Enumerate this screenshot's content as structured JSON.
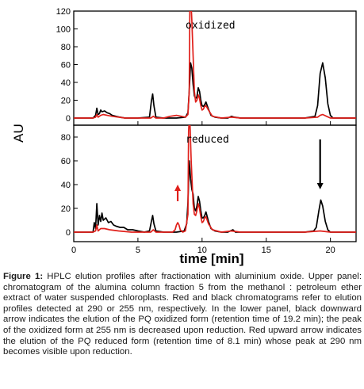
{
  "chart_data": [
    {
      "type": "line",
      "panel_label": "oxidized",
      "xlabel": "time [min]",
      "ylabel": "AU",
      "xlim": [
        0,
        22
      ],
      "ylim": [
        -8,
        120
      ],
      "x_ticks": [
        0,
        5,
        10,
        15,
        20
      ],
      "y_ticks": [
        0,
        20,
        40,
        60,
        80,
        100,
        120
      ],
      "x_tick_labels_shown": false,
      "grid": false,
      "legend": "none",
      "series": [
        {
          "color": "#000000",
          "x": [
            0,
            1.5,
            1.7,
            1.8,
            1.9,
            2.0,
            2.1,
            2.2,
            2.4,
            2.6,
            2.8,
            3.0,
            3.3,
            3.6,
            4.0,
            5.0,
            5.9,
            6.05,
            6.15,
            6.25,
            6.4,
            7.0,
            8.0,
            8.7,
            8.9,
            9.0,
            9.1,
            9.2,
            9.3,
            9.4,
            9.5,
            9.6,
            9.7,
            9.8,
            9.9,
            10.0,
            10.1,
            10.2,
            10.3,
            10.5,
            10.7,
            11.0,
            11.5,
            12.0,
            12.3,
            12.5,
            13.0,
            15.0,
            18.0,
            18.8,
            19.0,
            19.2,
            19.4,
            19.6,
            19.8,
            20.0,
            20.2,
            20.5,
            21.0,
            22.0
          ],
          "y": [
            0,
            0,
            3,
            11,
            4,
            5,
            9,
            7,
            8,
            6,
            5,
            3,
            2,
            1,
            0,
            0,
            1,
            19,
            27,
            14,
            1,
            0,
            0,
            1,
            6,
            30,
            62,
            56,
            38,
            25,
            22,
            24,
            34,
            30,
            20,
            14,
            13,
            15,
            18,
            10,
            3,
            1,
            0,
            0,
            2,
            1,
            0,
            0,
            0,
            2,
            14,
            50,
            62,
            45,
            16,
            3,
            0,
            0,
            0,
            0
          ]
        },
        {
          "color": "#e0201b",
          "x": [
            0,
            1.5,
            1.7,
            1.8,
            1.9,
            2.1,
            2.3,
            2.6,
            3.0,
            3.5,
            4.0,
            5.0,
            6.0,
            6.2,
            6.4,
            7.0,
            7.5,
            8.0,
            8.4,
            8.7,
            8.9,
            9.0,
            9.05,
            9.1,
            9.15,
            9.2,
            9.3,
            9.4,
            9.5,
            9.6,
            9.7,
            9.8,
            9.9,
            10.0,
            10.1,
            10.2,
            10.3,
            10.5,
            10.8,
            11.5,
            12.3,
            13.0,
            15.0,
            18.0,
            19.0,
            19.2,
            19.4,
            19.7,
            20.0,
            22.0
          ],
          "y": [
            0,
            0,
            1,
            4,
            1,
            3,
            4,
            3,
            2,
            1,
            0,
            0,
            0,
            2,
            0,
            0,
            2,
            3,
            2,
            1,
            4,
            30,
            125,
            125,
            125,
            110,
            70,
            30,
            18,
            20,
            26,
            22,
            14,
            9,
            10,
            13,
            14,
            9,
            2,
            0,
            1,
            0,
            0,
            0,
            1,
            3,
            4,
            2,
            0,
            0
          ]
        }
      ]
    },
    {
      "type": "line",
      "panel_label": "reduced",
      "xlabel": "time [min]",
      "ylabel": "AU",
      "xlim": [
        0,
        22
      ],
      "ylim": [
        -8,
        90
      ],
      "x_ticks": [
        0,
        5,
        10,
        15,
        20
      ],
      "y_ticks": [
        0,
        20,
        40,
        60,
        80
      ],
      "x_tick_labels": [
        "0",
        "5",
        "10",
        "15",
        "20"
      ],
      "grid": false,
      "legend": "none",
      "annotations": [
        {
          "kind": "arrow-up",
          "color": "#e0201b",
          "x": 8.1,
          "y_start": 26,
          "y_end": 40
        },
        {
          "kind": "arrow-down",
          "color": "#000000",
          "x": 19.2,
          "y_start": 78,
          "y_end": 36
        }
      ],
      "series": [
        {
          "color": "#000000",
          "x": [
            0,
            1.5,
            1.6,
            1.7,
            1.8,
            1.9,
            2.0,
            2.1,
            2.2,
            2.3,
            2.5,
            2.7,
            2.9,
            3.1,
            3.3,
            3.6,
            3.9,
            4.2,
            4.6,
            5.0,
            5.5,
            5.9,
            6.05,
            6.15,
            6.25,
            6.4,
            7.0,
            8.0,
            8.6,
            8.8,
            8.9,
            9.0,
            9.1,
            9.2,
            9.3,
            9.4,
            9.5,
            9.6,
            9.7,
            9.8,
            9.9,
            10.0,
            10.1,
            10.2,
            10.3,
            10.5,
            10.7,
            11.0,
            11.5,
            12.0,
            12.2,
            12.4,
            12.6,
            13.0,
            15.0,
            18.0,
            18.7,
            18.9,
            19.1,
            19.25,
            19.4,
            19.6,
            19.8,
            20.0,
            20.3,
            22.0
          ],
          "y": [
            0,
            0,
            8,
            3,
            24,
            6,
            14,
            9,
            16,
            10,
            12,
            8,
            9,
            6,
            5,
            4,
            4,
            2,
            2,
            1,
            0,
            1,
            9,
            14,
            7,
            1,
            0,
            0,
            1,
            7,
            25,
            60,
            45,
            36,
            32,
            20,
            18,
            22,
            30,
            26,
            18,
            12,
            12,
            14,
            17,
            9,
            3,
            1,
            0,
            0,
            1,
            2,
            0,
            0,
            0,
            0,
            1,
            4,
            18,
            27,
            22,
            9,
            2,
            0,
            0,
            0
          ]
        },
        {
          "color": "#e0201b",
          "x": [
            0,
            1.5,
            1.7,
            1.8,
            1.9,
            2.1,
            2.4,
            2.8,
            3.5,
            4.5,
            5.5,
            6.0,
            6.2,
            6.4,
            7.0,
            7.7,
            7.9,
            8.0,
            8.1,
            8.2,
            8.3,
            8.5,
            8.7,
            8.9,
            8.95,
            9.0,
            9.05,
            9.15,
            9.3,
            9.4,
            9.5,
            9.6,
            9.7,
            9.8,
            9.9,
            10.0,
            10.1,
            10.2,
            10.3,
            10.5,
            10.8,
            11.5,
            12.3,
            13.0,
            15.0,
            18.0,
            19.2,
            20.0,
            22.0
          ],
          "y": [
            0,
            0,
            1,
            6,
            1,
            3,
            3,
            2,
            1,
            0,
            0,
            0,
            2,
            0,
            0,
            0,
            2,
            6,
            8,
            6,
            2,
            0,
            1,
            15,
            85,
            95,
            95,
            60,
            24,
            15,
            14,
            18,
            24,
            20,
            13,
            8,
            9,
            12,
            13,
            7,
            2,
            0,
            1,
            0,
            0,
            0,
            1,
            0,
            0
          ]
        }
      ]
    }
  ],
  "caption": {
    "label": "Figure 1:",
    "text": " HPLC elution profiles after fractionation with aluminium oxide. Upper panel: chromatogram of the alumina column fraction 5 from the methanol : petroleum ether extract of water suspended chloroplasts. Red and black chromatograms refer to elution profiles detected at 290 or 255 nm, respectively. In the lower panel, black downward arrow indicates the elution of the PQ oxidized form (retention time of 19.2 min); the peak of the oxidized form at 255 nm is decreased upon reduction. Red upward arrow indicates the elution of the PQ reduced form (retention time of 8.1 min) whose peak at 290 nm becomes visible upon reduction."
  }
}
